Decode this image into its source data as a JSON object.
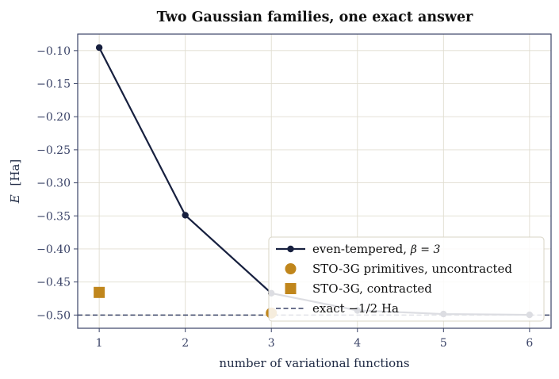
{
  "chart_data": {
    "type": "line",
    "title": "Two Gaussian families, one exact answer",
    "xlabel": "number of variational functions",
    "ylabel": "E [Ha]",
    "ylabel_var": "E",
    "ylabel_unit": "[Ha]",
    "xlim": [
      0.75,
      6.25
    ],
    "ylim": [
      -0.52,
      -0.075
    ],
    "xticks": [
      1,
      2,
      3,
      4,
      5,
      6
    ],
    "xtick_labels": [
      "1",
      "2",
      "3",
      "4",
      "5",
      "6"
    ],
    "yticks": [
      -0.1,
      -0.15,
      -0.2,
      -0.25,
      -0.3,
      -0.35,
      -0.4,
      -0.45,
      -0.5
    ],
    "ytick_labels": [
      "−0.10",
      "−0.15",
      "−0.20",
      "−0.25",
      "−0.30",
      "−0.35",
      "−0.40",
      "−0.45",
      "−0.50"
    ],
    "grid": true,
    "legend_position": "lower-right",
    "series": [
      {
        "name": "even-tempered, β = 3",
        "legend_label": "even-tempered, ",
        "legend_math": "β = 3",
        "kind": "line-marker",
        "color": "#17203f",
        "x": [
          1,
          2,
          3,
          4,
          5,
          6
        ],
        "y": [
          -0.0955,
          -0.349,
          -0.467,
          -0.493,
          -0.4985,
          -0.4997
        ]
      },
      {
        "name": "STO-3G primitives, uncontracted",
        "legend_label": "STO-3G primitives, uncontracted",
        "kind": "circle",
        "color": "#c0861c",
        "x": [
          3
        ],
        "y": [
          -0.497
        ]
      },
      {
        "name": "STO-3G, contracted",
        "legend_label": "STO-3G, contracted",
        "kind": "square",
        "color": "#c0861c",
        "x": [
          1
        ],
        "y": [
          -0.4658
        ]
      },
      {
        "name": "exact −1/2 Ha",
        "legend_label": "exact −1/2 Ha",
        "kind": "hline",
        "color": "#3b4468",
        "y": -0.5
      }
    ]
  }
}
